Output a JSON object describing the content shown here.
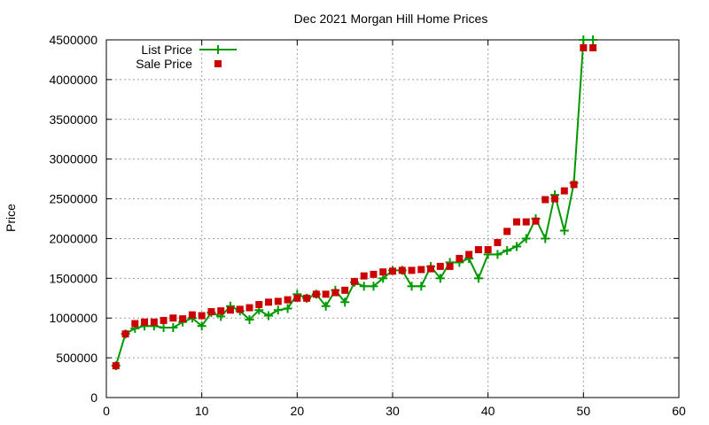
{
  "chart_data": {
    "type": "line",
    "title": "Dec 2021 Morgan Hill Home Prices",
    "xlabel": "",
    "ylabel": "Price",
    "xlim": [
      0,
      60
    ],
    "ylim": [
      0,
      4500000
    ],
    "x_ticks": [
      0,
      10,
      20,
      30,
      40,
      50,
      60
    ],
    "y_ticks": [
      0,
      500000,
      1000000,
      1500000,
      2000000,
      2500000,
      3000000,
      3500000,
      4000000,
      4500000
    ],
    "grid": true,
    "legend_position": "top-left",
    "series": [
      {
        "name": "List Price",
        "style": "line-plus",
        "color": "#009900",
        "x": [
          1,
          2,
          3,
          4,
          5,
          6,
          7,
          8,
          9,
          10,
          11,
          12,
          13,
          14,
          15,
          16,
          17,
          18,
          19,
          20,
          21,
          22,
          23,
          24,
          25,
          26,
          27,
          28,
          29,
          30,
          31,
          32,
          33,
          34,
          35,
          36,
          37,
          38,
          39,
          40,
          41,
          42,
          43,
          44,
          45,
          46,
          47,
          48,
          49,
          50,
          51
        ],
        "values": [
          400000,
          800000,
          870000,
          900000,
          900000,
          880000,
          880000,
          950000,
          1000000,
          900000,
          1070000,
          1020000,
          1150000,
          1090000,
          980000,
          1100000,
          1030000,
          1100000,
          1120000,
          1300000,
          1250000,
          1300000,
          1150000,
          1350000,
          1200000,
          1450000,
          1400000,
          1400000,
          1500000,
          1600000,
          1600000,
          1400000,
          1400000,
          1650000,
          1500000,
          1700000,
          1700000,
          1750000,
          1500000,
          1800000,
          1800000,
          1850000,
          1900000,
          2000000,
          2250000,
          2000000,
          2550000,
          2100000,
          2700000,
          4500000,
          4500000
        ]
      },
      {
        "name": "Sale Price",
        "style": "square-markers",
        "color": "#cc0000",
        "x": [
          1,
          2,
          3,
          4,
          5,
          6,
          7,
          8,
          9,
          10,
          11,
          12,
          13,
          14,
          15,
          16,
          17,
          18,
          19,
          20,
          21,
          22,
          23,
          24,
          25,
          26,
          27,
          28,
          29,
          30,
          31,
          32,
          33,
          34,
          35,
          36,
          37,
          38,
          39,
          40,
          41,
          42,
          43,
          44,
          45,
          46,
          47,
          48,
          49,
          50,
          51
        ],
        "values": [
          400000,
          800000,
          930000,
          950000,
          950000,
          970000,
          1000000,
          990000,
          1040000,
          1030000,
          1080000,
          1090000,
          1100000,
          1110000,
          1130000,
          1170000,
          1200000,
          1210000,
          1230000,
          1250000,
          1250000,
          1300000,
          1300000,
          1320000,
          1350000,
          1460000,
          1530000,
          1550000,
          1580000,
          1590000,
          1600000,
          1600000,
          1610000,
          1620000,
          1650000,
          1650000,
          1750000,
          1800000,
          1860000,
          1860000,
          1950000,
          2090000,
          2210000,
          2210000,
          2220000,
          2490000,
          2500000,
          2600000,
          2680000,
          4400000,
          4400000
        ]
      }
    ]
  }
}
